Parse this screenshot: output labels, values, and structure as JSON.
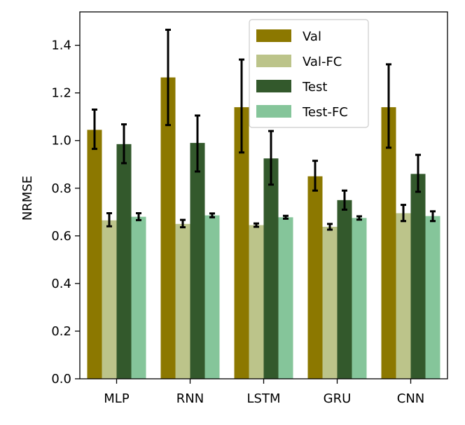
{
  "chart_data": {
    "type": "bar",
    "title": "",
    "xlabel": "",
    "ylabel": "NRMSE",
    "ylim": [
      0.0,
      1.54
    ],
    "yticks": [
      0.0,
      0.2,
      0.4,
      0.6,
      0.8,
      1.0,
      1.2,
      1.4
    ],
    "ytick_labels": [
      "0.0",
      "0.2",
      "0.4",
      "0.6",
      "0.8",
      "1.0",
      "1.2",
      "1.4"
    ],
    "categories": [
      "MLP",
      "RNN",
      "LSTM",
      "GRU",
      "CNN"
    ],
    "grid": false,
    "legend_position": "top-right",
    "series": [
      {
        "name": "Val",
        "color": "#8c7800",
        "values": [
          1.045,
          1.265,
          1.14,
          0.85,
          1.14
        ],
        "err_low": [
          0.965,
          1.065,
          0.95,
          0.79,
          0.97
        ],
        "err_high": [
          1.13,
          1.465,
          1.34,
          0.915,
          1.32
        ]
      },
      {
        "name": "Val-FC",
        "color": "#bcc48a",
        "values": [
          0.665,
          0.65,
          0.645,
          0.638,
          0.695
        ],
        "err_low": [
          0.64,
          0.636,
          0.638,
          0.626,
          0.662
        ],
        "err_high": [
          0.695,
          0.667,
          0.652,
          0.65,
          0.73
        ]
      },
      {
        "name": "Test",
        "color": "#33592c",
        "values": [
          0.985,
          0.99,
          0.925,
          0.75,
          0.86
        ],
        "err_low": [
          0.905,
          0.87,
          0.815,
          0.71,
          0.785
        ],
        "err_high": [
          1.068,
          1.105,
          1.04,
          0.79,
          0.94
        ]
      },
      {
        "name": "Test-FC",
        "color": "#85c59a",
        "values": [
          0.68,
          0.686,
          0.678,
          0.675,
          0.683
        ],
        "err_low": [
          0.666,
          0.678,
          0.672,
          0.668,
          0.662
        ],
        "err_high": [
          0.695,
          0.694,
          0.684,
          0.682,
          0.703
        ]
      }
    ]
  }
}
